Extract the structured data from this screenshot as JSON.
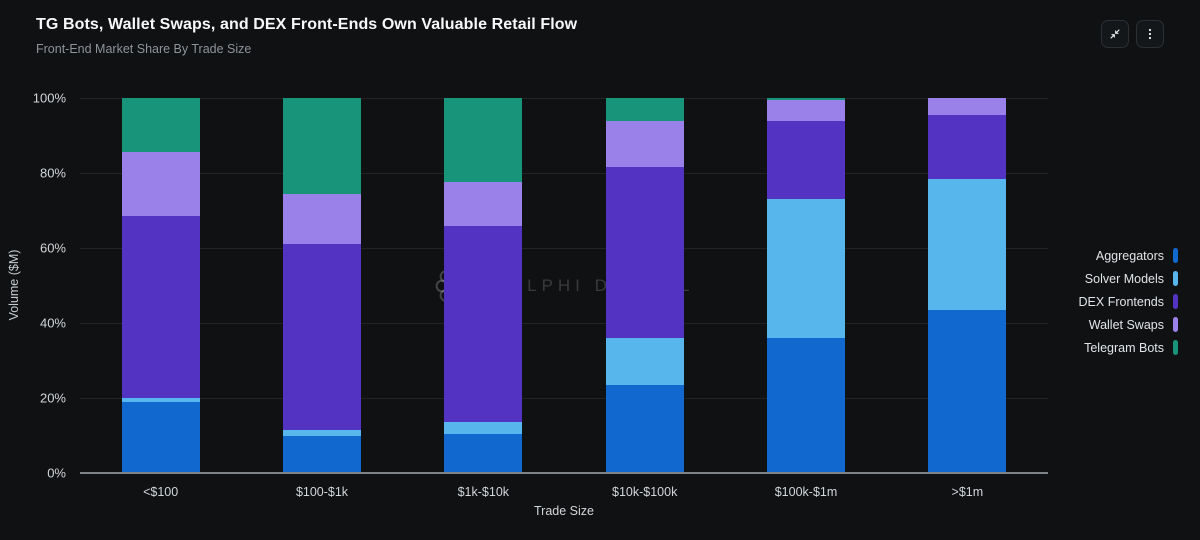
{
  "header": {
    "title": "TG Bots, Wallet Swaps, and DEX Front-Ends Own Valuable Retail Flow",
    "subtitle": "Front-End Market Share By Trade Size"
  },
  "toolbar": {
    "buttons": [
      {
        "name": "collapse-button",
        "icon": "compress-icon"
      },
      {
        "name": "more-options-button",
        "icon": "kebab-menu-icon"
      }
    ]
  },
  "watermark": {
    "text": "DELPHI DIGITAL",
    "logo": "delphi-flower-logo-icon"
  },
  "chart_data": {
    "type": "bar",
    "stacked": true,
    "percent": true,
    "title": "TG Bots, Wallet Swaps, and DEX Front-Ends Own Valuable Retail Flow",
    "subtitle": "Front-End Market Share By Trade Size",
    "xlabel": "Trade Size",
    "ylabel": "Volume ($M)",
    "categories": [
      "<$100",
      "$100-$1k",
      "$1k-$10k",
      "$10k-$100k",
      "$100k-$1m",
      ">$1m"
    ],
    "series": [
      {
        "name": "Aggregators",
        "color": "#1168ce",
        "values": [
          19,
          10,
          10.5,
          23.5,
          36,
          43.5
        ]
      },
      {
        "name": "Solver Models",
        "color": "#57b6ec",
        "values": [
          1,
          1.5,
          3,
          12.5,
          37,
          35
        ]
      },
      {
        "name": "DEX Frontends",
        "color": "#5334c2",
        "values": [
          48.5,
          49.5,
          52.5,
          45.5,
          21,
          17
        ]
      },
      {
        "name": "Wallet Swaps",
        "color": "#9a81e9",
        "values": [
          17,
          13.5,
          11.5,
          12.5,
          5.5,
          4.5
        ]
      },
      {
        "name": "Telegram Bots",
        "color": "#18947a",
        "values": [
          14.5,
          25.5,
          22.5,
          6,
          0.5,
          0
        ]
      }
    ],
    "stack_order_bottom_to_top": [
      "Aggregators",
      "Solver Models",
      "DEX Frontends",
      "Wallet Swaps",
      "Telegram Bots"
    ],
    "legend_order_top_to_bottom": [
      "Aggregators",
      "Solver Models",
      "DEX Frontends",
      "Wallet Swaps",
      "Telegram Bots"
    ],
    "legend_position": "right",
    "grid": true,
    "ylim": [
      0,
      100
    ],
    "yticks": [
      0,
      20,
      40,
      60,
      80,
      100
    ],
    "ytick_labels": [
      "0%",
      "20%",
      "40%",
      "60%",
      "80%",
      "100%"
    ]
  }
}
